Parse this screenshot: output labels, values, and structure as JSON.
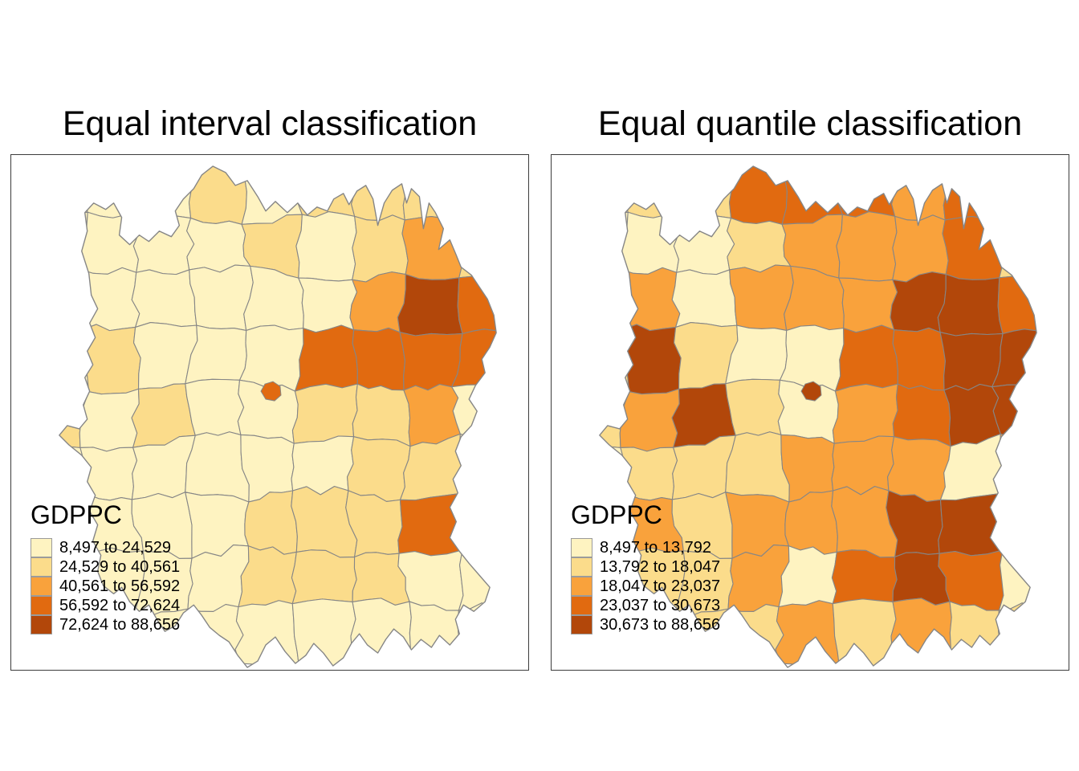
{
  "chart_data": {
    "type": "choropleth",
    "figure": "two-panel comparison of choropleth classification methods",
    "variable": "GDPPC",
    "palette": [
      "#FEF3C1",
      "#FBDC8B",
      "#F9A23C",
      "#E16A10",
      "#B2470A"
    ],
    "border_color": "#868686",
    "maps": [
      {
        "title": "Equal interval classification",
        "method": "equal interval",
        "legend_title": "GDPPC",
        "breaks": [
          8497,
          24529,
          40561,
          56592,
          72624,
          88656
        ],
        "legend_labels": [
          "8,497 to 24,529",
          "24,529 to 40,561",
          "40,561 to 56,592",
          "56,592 to 72,624",
          "72,624 to 88,656"
        ],
        "cell_classes": [
          0,
          0,
          0,
          1,
          0,
          1,
          1,
          1,
          0,
          0,
          0,
          0,
          0,
          1,
          0,
          1,
          2,
          1,
          0,
          0,
          0,
          0,
          0,
          0,
          2,
          4,
          3,
          0,
          1,
          0,
          0,
          0,
          3,
          3,
          3,
          3,
          1,
          0,
          1,
          0,
          0,
          1,
          1,
          2,
          0,
          0,
          0,
          0,
          0,
          0,
          0,
          1,
          1,
          0,
          0,
          0,
          0,
          0,
          1,
          1,
          1,
          3,
          0,
          0,
          0,
          0,
          0,
          1,
          1,
          1,
          0,
          0,
          0,
          0,
          0,
          0,
          0,
          0,
          0,
          0,
          0
        ],
        "inset_class": 3
      },
      {
        "title": "Equal quantile classification",
        "method": "quantile",
        "legend_title": "GDPPC",
        "breaks": [
          8497,
          13792,
          18047,
          23037,
          30673,
          88656
        ],
        "legend_labels": [
          "8,497 to 13,792",
          "13,792 to 18,047",
          "18,047 to 23,037",
          "23,037 to 30,673",
          "30,673 to 88,656"
        ],
        "cell_classes": [
          0,
          1,
          1,
          3,
          3,
          3,
          2,
          3,
          4,
          0,
          0,
          0,
          1,
          2,
          2,
          2,
          3,
          1,
          0,
          2,
          0,
          2,
          2,
          2,
          4,
          4,
          3,
          1,
          4,
          1,
          0,
          0,
          3,
          3,
          4,
          4,
          1,
          2,
          4,
          1,
          0,
          2,
          3,
          4,
          4,
          0,
          1,
          1,
          1,
          2,
          2,
          2,
          0,
          2,
          0,
          2,
          1,
          2,
          2,
          2,
          4,
          4,
          0,
          0,
          1,
          1,
          2,
          0,
          3,
          4,
          3,
          0,
          0,
          0,
          1,
          1,
          2,
          1,
          2,
          1,
          1
        ],
        "inset_class": 4
      }
    ]
  }
}
